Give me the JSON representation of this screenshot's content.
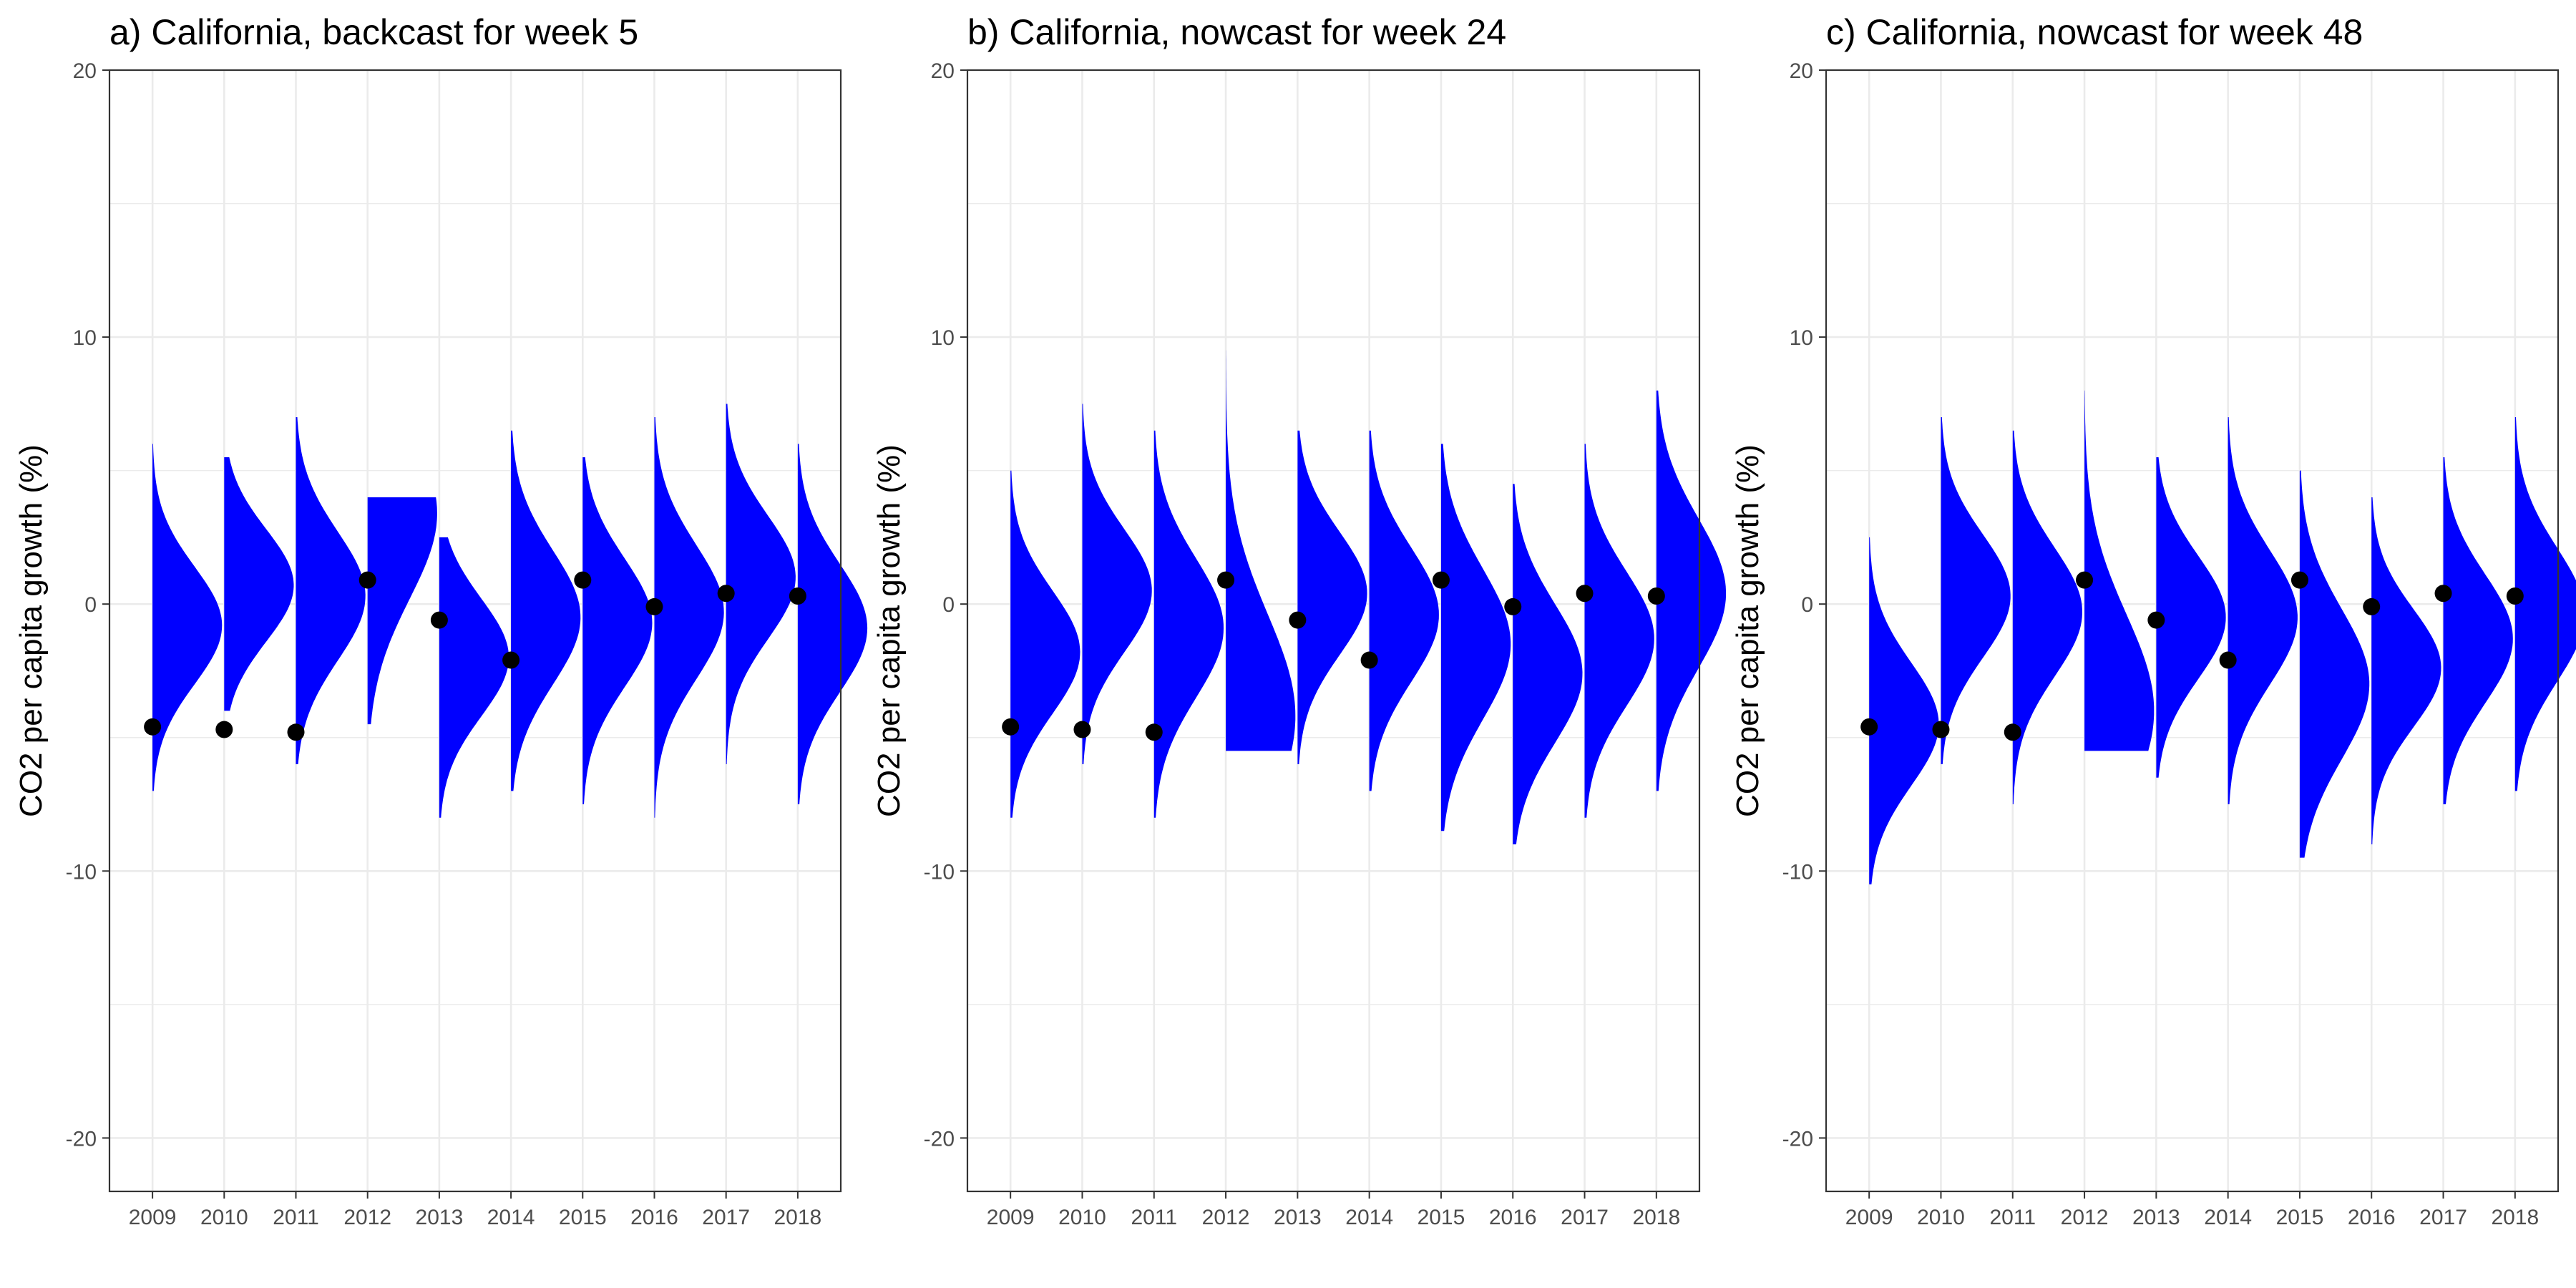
{
  "figure": {
    "background": "#ffffff",
    "density_color": "#0000ff",
    "point_color": "#000000"
  },
  "chart_data": [
    {
      "type": "violin",
      "panel": "a",
      "title": "a) California, backcast for week 5",
      "xlabel": "",
      "ylabel": "CO2 per capita growth (%)",
      "ylim": [
        -22,
        20
      ],
      "yticks": [
        -20,
        -10,
        0,
        10,
        20
      ],
      "yticklabels": [
        "-20",
        "-10",
        "0",
        "10",
        "20"
      ],
      "grid": true,
      "categories": [
        "2009",
        "2010",
        "2011",
        "2012",
        "2013",
        "2014",
        "2015",
        "2016",
        "2017",
        "2018"
      ],
      "observed": [
        -4.6,
        -4.7,
        -4.8,
        0.9,
        -0.6,
        -2.1,
        0.9,
        -0.1,
        0.4,
        0.3
      ],
      "density_mean": [
        -0.8,
        0.7,
        0.3,
        3.4,
        -2.0,
        -0.5,
        -0.7,
        -0.3,
        1.0,
        -0.9
      ],
      "density_sd": [
        2.2,
        2.1,
        2.4,
        3.2,
        2.2,
        2.5,
        2.4,
        2.5,
        2.3,
        2.4
      ],
      "density_range": [
        [
          -7,
          6
        ],
        [
          -4,
          5.5
        ],
        [
          -6,
          7
        ],
        [
          -4.5,
          4
        ],
        [
          -8,
          2.5
        ],
        [
          -7,
          6.5
        ],
        [
          -7.5,
          5.5
        ],
        [
          -8,
          7
        ],
        [
          -6,
          7.5
        ],
        [
          -7.5,
          6
        ]
      ]
    },
    {
      "type": "violin",
      "panel": "b",
      "title": "b) California, nowcast for week 24",
      "xlabel": "",
      "ylabel": "CO2 per capita growth (%)",
      "ylim": [
        -22,
        20
      ],
      "yticks": [
        -20,
        -10,
        0,
        10,
        20
      ],
      "yticklabels": [
        "-20",
        "-10",
        "0",
        "10",
        "20"
      ],
      "grid": true,
      "categories": [
        "2009",
        "2010",
        "2011",
        "2012",
        "2013",
        "2014",
        "2015",
        "2016",
        "2017",
        "2018"
      ],
      "observed": [
        -4.6,
        -4.7,
        -4.8,
        0.9,
        -0.6,
        -2.1,
        0.9,
        -0.1,
        0.4,
        0.3
      ],
      "density_mean": [
        -1.8,
        0.5,
        -0.9,
        -4.2,
        0.4,
        -0.4,
        -1.5,
        -2.6,
        -1.3,
        0.4
      ],
      "density_sd": [
        2.3,
        2.3,
        2.6,
        3.8,
        2.3,
        2.5,
        2.8,
        2.6,
        2.5,
        2.8
      ],
      "density_range": [
        [
          -8,
          5
        ],
        [
          -6,
          7.5
        ],
        [
          -8,
          6.5
        ],
        [
          -5.5,
          9.5
        ],
        [
          -6,
          6.5
        ],
        [
          -7,
          6.5
        ],
        [
          -8.5,
          6
        ],
        [
          -9,
          4.5
        ],
        [
          -8,
          6
        ],
        [
          -7,
          8
        ]
      ]
    },
    {
      "type": "violin",
      "panel": "c",
      "title": "c) California, nowcast for week 48",
      "xlabel": "",
      "ylabel": "CO2 per capita growth (%)",
      "ylim": [
        -22,
        20
      ],
      "yticks": [
        -20,
        -10,
        0,
        10,
        20
      ],
      "yticklabels": [
        "-20",
        "-10",
        "0",
        "10",
        "20"
      ],
      "grid": true,
      "categories": [
        "2009",
        "2010",
        "2011",
        "2012",
        "2013",
        "2014",
        "2015",
        "2016",
        "2017",
        "2018"
      ],
      "observed": [
        -4.6,
        -4.7,
        -4.8,
        0.9,
        -0.6,
        -2.1,
        0.9,
        -0.1,
        0.4,
        0.3
      ],
      "density_mean": [
        -4.5,
        0.3,
        -0.3,
        -4.0,
        -0.5,
        -0.5,
        -3.0,
        -2.4,
        -1.3,
        -0.4
      ],
      "density_sd": [
        2.3,
        2.3,
        2.4,
        3.6,
        2.3,
        2.5,
        2.8,
        2.2,
        2.4,
        2.5
      ],
      "density_range": [
        [
          -10.5,
          2.5
        ],
        [
          -6,
          7
        ],
        [
          -7.5,
          6.5
        ],
        [
          -5.5,
          8
        ],
        [
          -6.5,
          5.5
        ],
        [
          -7.5,
          7
        ],
        [
          -9.5,
          5
        ],
        [
          -9,
          4
        ],
        [
          -7.5,
          5.5
        ],
        [
          -7,
          7
        ]
      ]
    }
  ]
}
